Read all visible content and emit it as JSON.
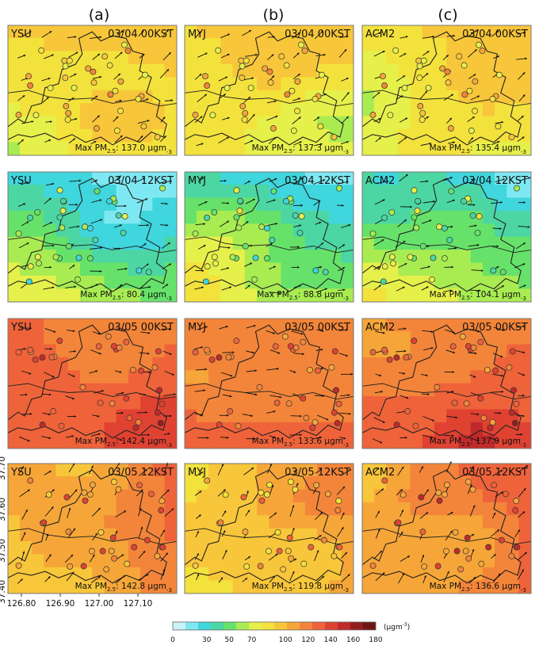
{
  "figure": {
    "column_labels": [
      "(a)",
      "(b)",
      "(c)"
    ],
    "rows": [
      {
        "time": "03/04  00KST",
        "panels": [
          {
            "scheme": "YSU",
            "max_label": "Max PM",
            "max_sub": "2.5",
            "max_value": "137.0 μgm",
            "max_sup": "-3"
          },
          {
            "scheme": "MYJ",
            "max_label": "Max PM",
            "max_sub": "2.5",
            "max_value": "137.3 μgm",
            "max_sup": "-3"
          },
          {
            "scheme": "ACM2",
            "max_label": "Max PM",
            "max_sub": "2.5",
            "max_value": "135.4 μgm",
            "max_sup": "-3"
          }
        ]
      },
      {
        "time": "03/04  12KST",
        "panels": [
          {
            "scheme": "YSU",
            "max_label": "Max PM",
            "max_sub": "2.5",
            "max_value": "80.4 μgm",
            "max_sup": "-3"
          },
          {
            "scheme": "MYJ",
            "max_label": "Max PM",
            "max_sub": "2.5",
            "max_value": "88.8 μgm",
            "max_sup": "-3"
          },
          {
            "scheme": "ACM2",
            "max_label": "Max PM",
            "max_sub": "2.5",
            "max_value": "104.1 μgm",
            "max_sup": "-3"
          }
        ]
      },
      {
        "time": "03/05  00KST",
        "panels": [
          {
            "scheme": "YSU",
            "max_label": "Max PM",
            "max_sub": "2.5",
            "max_value": "142.4 μgm",
            "max_sup": "-3"
          },
          {
            "scheme": "MYJ",
            "max_label": "Max PM",
            "max_sub": "2.5",
            "max_value": "133.6 μgm",
            "max_sup": "-3"
          },
          {
            "scheme": "ACM2",
            "max_label": "Max PM",
            "max_sub": "2.5",
            "max_value": "137.0 μgm",
            "max_sup": "-3"
          }
        ]
      },
      {
        "time": "03/05  12KST",
        "panels": [
          {
            "scheme": "YSU",
            "max_label": "Max PM",
            "max_sub": "2.5",
            "max_value": "142.8 μgm",
            "max_sup": "-3"
          },
          {
            "scheme": "MYJ",
            "max_label": "Max PM",
            "max_sub": "2.5",
            "max_value": "119.8 μgm",
            "max_sup": "-3"
          },
          {
            "scheme": "ACM2",
            "max_label": "Max PM",
            "max_sub": "2.5",
            "max_value": "136.6 μgm",
            "max_sup": "-3"
          }
        ]
      }
    ]
  },
  "chart_data": {
    "type": "heatmap",
    "x_ticks": [
      "126.80",
      "126.90",
      "127.00",
      "127.10"
    ],
    "y_ticks": [
      "37.70",
      "37.60",
      "37.50",
      "37.40"
    ],
    "colorbar": {
      "tick_labels": [
        "0",
        "30",
        "50",
        "70",
        "100",
        "120",
        "140",
        "160",
        "180"
      ],
      "unit_label": "(μgm",
      "unit_sup": "-3",
      "unit_close": ")",
      "colors": [
        "#c8f3fb",
        "#7ee8f2",
        "#3fd6dd",
        "#4cd6a4",
        "#66e26a",
        "#a9ec52",
        "#e6f04a",
        "#f3e23c",
        "#f8c63a",
        "#f6a638",
        "#f3853a",
        "#ef633a",
        "#e04232",
        "#c02a2a",
        "#931e1e",
        "#6e1616"
      ]
    },
    "panel_mean_pm25": [
      [
        85,
        84,
        83
      ],
      [
        45,
        47,
        52
      ],
      [
        128,
        122,
        126
      ],
      [
        112,
        97,
        118
      ]
    ]
  }
}
